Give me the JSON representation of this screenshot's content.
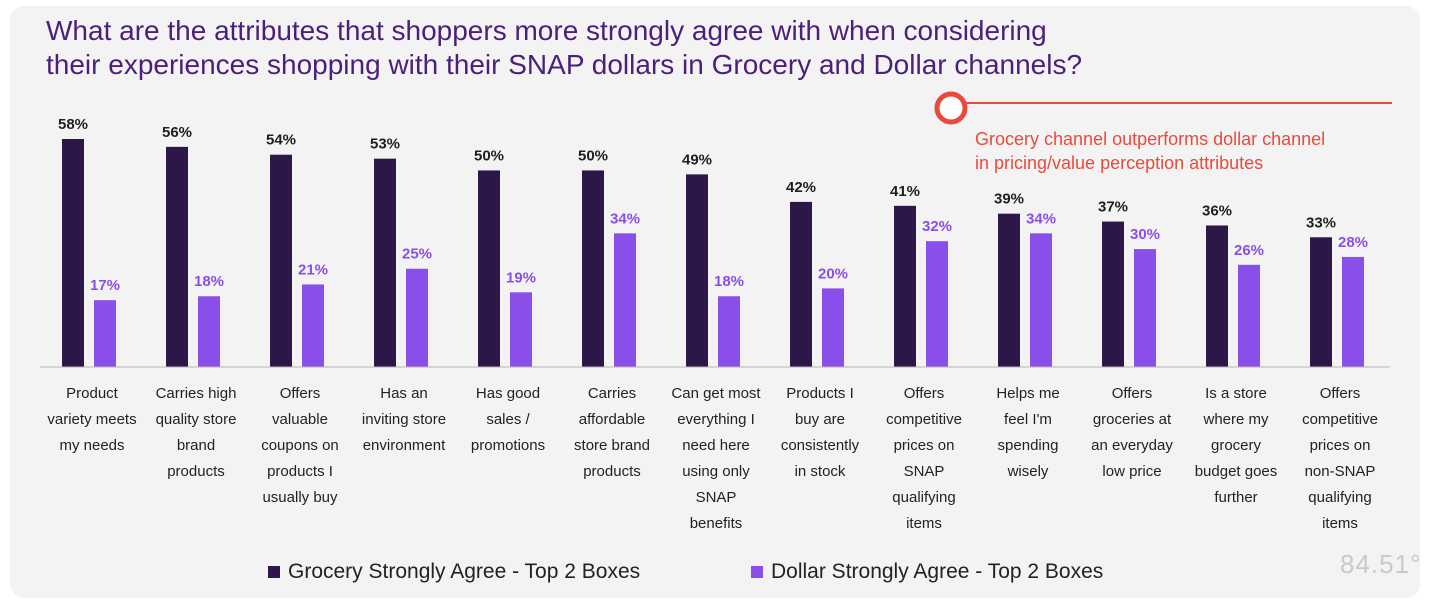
{
  "title_lines": [
    "What are the attributes that shoppers more strongly agree with when considering",
    "their experiences shopping with their SNAP dollars in Grocery and Dollar channels?"
  ],
  "callout_lines": [
    "Grocery channel outperforms dollar channel",
    "in pricing/value perception attributes"
  ],
  "logo_text": "84.51°",
  "colors": {
    "grocery": "#2d1648",
    "dollar": "#8a4fe8",
    "callout": "#ea4a3a",
    "title": "#4b1f7a"
  },
  "chart_data": {
    "type": "bar",
    "categories": [
      [
        "Product",
        "variety meets",
        "my needs"
      ],
      [
        "Carries high",
        "quality store",
        "brand",
        "products"
      ],
      [
        "Offers",
        "valuable",
        "coupons on",
        "products I",
        "usually buy"
      ],
      [
        "Has an",
        "inviting store",
        "environment"
      ],
      [
        "Has good",
        "sales /",
        "promotions"
      ],
      [
        "Carries",
        "affordable",
        "store brand",
        "products"
      ],
      [
        "Can get most",
        "everything I",
        "need here",
        "using only",
        "SNAP",
        "benefits"
      ],
      [
        "Products I",
        "buy are",
        "consistently",
        "in stock"
      ],
      [
        "Offers",
        "competitive",
        "prices on",
        "SNAP",
        "qualifying",
        "items"
      ],
      [
        "Helps me",
        "feel I'm",
        "spending",
        "wisely"
      ],
      [
        "Offers",
        "groceries at",
        "an everyday",
        "low price"
      ],
      [
        "Is a store",
        "where my",
        "grocery",
        "budget goes",
        "further"
      ],
      [
        "Offers",
        "competitive",
        "prices on",
        "non-SNAP",
        "qualifying",
        "items"
      ]
    ],
    "series": [
      {
        "name": "Grocery Strongly Agree - Top 2 Boxes",
        "values": [
          58,
          56,
          54,
          53,
          50,
          50,
          49,
          42,
          41,
          39,
          37,
          36,
          33
        ],
        "labels": [
          "58%",
          "56%",
          "54%",
          "53%",
          "50%",
          "50%",
          "49%",
          "42%",
          "41%",
          "39%",
          "37%",
          "36%",
          "33%"
        ]
      },
      {
        "name": "Dollar Strongly Agree - Top 2 Boxes",
        "values": [
          17,
          18,
          21,
          25,
          19,
          34,
          18,
          20,
          32,
          34,
          30,
          26,
          28
        ],
        "labels": [
          "17%",
          "18%",
          "21%",
          "25%",
          "19%",
          "34%",
          "18%",
          "20%",
          "32%",
          "34%",
          "30%",
          "26%",
          "28%"
        ]
      }
    ],
    "ylim": [
      0,
      58
    ],
    "legend_position": "bottom",
    "grid": false
  }
}
